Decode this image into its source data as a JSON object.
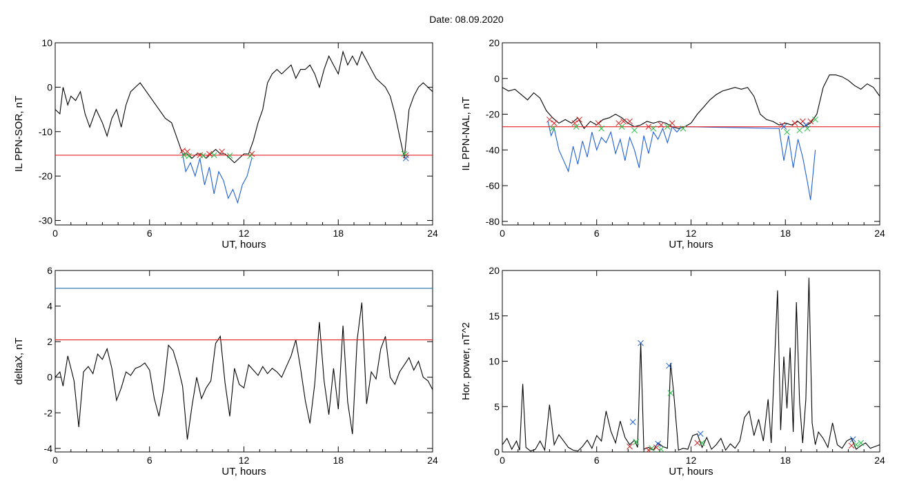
{
  "page": {
    "title": "Date:  08.09.2020"
  },
  "chart_data": [
    {
      "type": "line",
      "id": "p1",
      "xlabel": "UT, hours",
      "ylabel": "IL PPN-SOR, nT",
      "xlim": [
        0,
        24
      ],
      "ylim": [
        -31,
        10
      ],
      "xticks": [
        0,
        6,
        12,
        18,
        24
      ],
      "yticks": [
        10,
        0,
        -10,
        -20,
        -30
      ],
      "series": [
        {
          "color": "#000000",
          "x": [
            0,
            0.3,
            0.5,
            0.8,
            1.0,
            1.3,
            1.6,
            1.9,
            2.2,
            2.6,
            3.0,
            3.3,
            3.6,
            3.9,
            4.2,
            4.5,
            4.8,
            5.1,
            5.4,
            5.8,
            6.2,
            6.6,
            7.0,
            7.4,
            7.8,
            8.1,
            8.4,
            8.7,
            9.0,
            9.3,
            9.6,
            9.9,
            10.2,
            10.5,
            10.8,
            11.1,
            11.4,
            11.7,
            12.0,
            12.3,
            12.6,
            12.9,
            13.2,
            13.5,
            13.8,
            14.1,
            14.4,
            14.7,
            15.0,
            15.3,
            15.6,
            15.9,
            16.2,
            16.5,
            16.8,
            17.1,
            17.4,
            17.7,
            18.0,
            18.3,
            18.6,
            18.9,
            19.2,
            19.5,
            19.8,
            20.1,
            20.4,
            20.7,
            21.0,
            21.3,
            21.6,
            21.9,
            22.2,
            22.5,
            22.8,
            23.1,
            23.4,
            23.7,
            24.0
          ],
          "y": [
            -5,
            -6,
            0,
            -4,
            -2,
            -3,
            -1,
            -6,
            -9,
            -5,
            -8,
            -11,
            -7,
            -5,
            -9,
            -4,
            -1,
            0,
            1,
            -1,
            -3,
            -5,
            -7,
            -8,
            -12,
            -15,
            -15,
            -16,
            -15,
            -15,
            -16,
            -15,
            -14,
            -15,
            -15,
            -16,
            -17,
            -16,
            -15,
            -15,
            -12,
            -8,
            -5,
            1,
            3,
            4,
            3,
            4,
            5,
            2,
            4,
            4,
            5,
            3,
            0,
            4,
            7,
            5,
            3,
            8,
            5,
            7,
            5,
            8,
            6,
            4,
            2,
            1,
            0,
            -2,
            -6,
            -11,
            -16,
            -5,
            -2,
            0,
            1,
            0,
            -1
          ]
        },
        {
          "color": "#1e5fd6",
          "x": [
            8.1,
            8.3,
            8.6,
            8.9,
            9.2,
            9.5,
            9.8,
            10.1,
            10.4,
            10.7,
            11.0,
            11.3,
            11.6,
            11.9,
            12.2,
            12.5
          ],
          "y": [
            -15,
            -19,
            -17,
            -20,
            -16,
            -22,
            -18,
            -24,
            -19,
            -21,
            -25,
            -23,
            -26,
            -22,
            -20,
            -16
          ]
        }
      ],
      "thresholds": [
        {
          "y": -15.3,
          "color": "#e02020"
        }
      ],
      "markers": [
        {
          "symbol": "x",
          "color": "#e02020",
          "x": [
            8.1,
            8.4,
            9.2,
            9.8,
            10.6,
            12.5,
            22.3
          ],
          "y": [
            -14.3,
            -14.5,
            -15.3,
            -15.0,
            -14.5,
            -15.0,
            -15.3
          ]
        },
        {
          "symbol": "x",
          "color": "#20c040",
          "x": [
            8.2,
            8.5,
            9.4,
            10.1,
            11.1,
            12.4,
            22.2
          ],
          "y": [
            -15.3,
            -15.5,
            -15.4,
            -15.3,
            -15.4,
            -15.5,
            -15.0
          ]
        },
        {
          "symbol": "x",
          "color": "#1e5fd6",
          "x": [
            22.3
          ],
          "y": [
            -16.0
          ]
        }
      ]
    },
    {
      "type": "line",
      "id": "p2",
      "xlabel": "UT, hours",
      "ylabel": "IL PPN-NAL, nT",
      "xlim": [
        0,
        24
      ],
      "ylim": [
        -82,
        20
      ],
      "xticks": [
        0,
        6,
        12,
        18,
        24
      ],
      "yticks": [
        20,
        0,
        -20,
        -40,
        -60,
        -80
      ],
      "series": [
        {
          "color": "#000000",
          "x": [
            0,
            0.4,
            0.8,
            1.2,
            1.6,
            2.0,
            2.4,
            2.8,
            3.2,
            3.6,
            4.0,
            4.4,
            4.8,
            5.2,
            5.6,
            6.0,
            6.4,
            6.8,
            7.2,
            7.6,
            8.0,
            8.4,
            8.8,
            9.2,
            9.6,
            10.0,
            10.4,
            10.8,
            11.2,
            11.6,
            12.0,
            12.4,
            12.8,
            13.2,
            13.6,
            14.0,
            14.4,
            14.8,
            15.2,
            15.6,
            16.0,
            16.4,
            16.8,
            17.2,
            17.6,
            18.0,
            18.4,
            18.8,
            19.2,
            19.6,
            20.0,
            20.4,
            20.8,
            21.2,
            21.6,
            22.0,
            22.4,
            22.8,
            23.2,
            23.6,
            24.0
          ],
          "y": [
            -5,
            -7,
            -6,
            -9,
            -12,
            -8,
            -11,
            -18,
            -22,
            -25,
            -23,
            -25,
            -22,
            -28,
            -24,
            -26,
            -23,
            -22,
            -20,
            -22,
            -25,
            -27,
            -26,
            -24,
            -25,
            -24,
            -25,
            -27,
            -28,
            -27,
            -25,
            -20,
            -16,
            -12,
            -9,
            -7,
            -6,
            -5,
            -6,
            -5,
            -10,
            -20,
            -23,
            -24,
            -26,
            -25,
            -26,
            -24,
            -27,
            -25,
            -20,
            -5,
            2,
            2,
            1,
            -1,
            -4,
            -6,
            -3,
            -5,
            -10
          ]
        },
        {
          "color": "#1e5fd6",
          "x": [
            2.9,
            3.1,
            3.3,
            3.6,
            3.9,
            4.2,
            4.5,
            4.8,
            5.1,
            5.4,
            5.7,
            6.0,
            6.3,
            6.6,
            6.9,
            7.2,
            7.5,
            7.8,
            8.1,
            8.4,
            8.7,
            9.0,
            9.3,
            9.6,
            9.9,
            10.2,
            10.5,
            10.8,
            11.1,
            11.4,
            17.6,
            17.9,
            18.2,
            18.5,
            18.8,
            19.1,
            19.4,
            19.6,
            19.9
          ],
          "y": [
            -24,
            -32,
            -28,
            -40,
            -46,
            -52,
            -38,
            -48,
            -35,
            -44,
            -30,
            -40,
            -33,
            -36,
            -30,
            -42,
            -34,
            -46,
            -33,
            -40,
            -50,
            -32,
            -42,
            -30,
            -34,
            -28,
            -36,
            -27,
            -30,
            -27,
            -28,
            -46,
            -32,
            -50,
            -34,
            -44,
            -58,
            -68,
            -40
          ]
        }
      ],
      "thresholds": [
        {
          "y": -27,
          "color": "#e02020"
        }
      ],
      "markers": [
        {
          "symbol": "x",
          "color": "#e02020",
          "x": [
            3.0,
            3.3,
            4.6,
            4.9,
            6.1,
            7.4,
            7.7,
            8.1,
            9.3,
            10.1,
            10.8,
            17.8,
            18.6,
            19.1,
            19.6
          ],
          "y": [
            -23,
            -25,
            -25,
            -23,
            -25,
            -25,
            -24,
            -24,
            -27,
            -26,
            -25,
            -26,
            -25,
            -24,
            -24
          ]
        },
        {
          "symbol": "x",
          "color": "#20c040",
          "x": [
            3.2,
            4.7,
            6.3,
            7.6,
            8.4,
            9.6,
            10.5,
            11.5,
            18.1,
            18.9,
            19.4,
            19.9
          ],
          "y": [
            -28,
            -27,
            -28,
            -27,
            -29,
            -28,
            -27,
            -28,
            -30,
            -29,
            -28,
            -23
          ]
        },
        {
          "symbol": "x",
          "color": "#1e5fd6",
          "x": [
            17.9,
            19.3
          ],
          "y": [
            -27,
            -26
          ]
        }
      ]
    },
    {
      "type": "line",
      "id": "p3",
      "xlabel": "UT, hours",
      "ylabel": "deltaX, nT",
      "xlim": [
        0,
        24
      ],
      "ylim": [
        -4.2,
        6
      ],
      "xticks": [
        0,
        6,
        12,
        18,
        24
      ],
      "yticks": [
        6,
        4,
        2,
        0,
        -2,
        -4
      ],
      "series": [
        {
          "color": "#000000",
          "x": [
            0,
            0.3,
            0.5,
            0.8,
            1.0,
            1.2,
            1.5,
            1.8,
            2.1,
            2.4,
            2.7,
            3.0,
            3.3,
            3.6,
            3.9,
            4.2,
            4.5,
            4.8,
            5.1,
            5.4,
            5.7,
            6.0,
            6.3,
            6.6,
            6.9,
            7.2,
            7.5,
            7.8,
            8.1,
            8.4,
            8.7,
            9.0,
            9.3,
            9.6,
            9.9,
            10.2,
            10.5,
            10.8,
            11.1,
            11.4,
            11.7,
            12.0,
            12.3,
            12.6,
            12.9,
            13.2,
            13.5,
            13.8,
            14.1,
            14.4,
            14.7,
            15.0,
            15.3,
            15.6,
            15.9,
            16.2,
            16.5,
            16.8,
            17.1,
            17.4,
            17.7,
            18.0,
            18.3,
            18.6,
            18.9,
            19.2,
            19.5,
            19.8,
            20.1,
            20.4,
            20.7,
            21.0,
            21.3,
            21.6,
            21.9,
            22.2,
            22.5,
            22.8,
            23.1,
            23.4,
            23.7,
            24.0
          ],
          "y": [
            0,
            0.3,
            -0.5,
            1.2,
            0.5,
            -0.2,
            -2.8,
            0.3,
            0.6,
            0.2,
            1.3,
            1.0,
            1.6,
            0.5,
            -1.3,
            -0.6,
            0.3,
            0.1,
            0.5,
            0.6,
            0.8,
            0.4,
            -1.2,
            -2.2,
            -0.6,
            1.8,
            1.5,
            0.6,
            -0.5,
            -3.5,
            -1.6,
            0.0,
            -1.2,
            -0.6,
            -0.2,
            1.9,
            2.3,
            -0.3,
            -2.2,
            0.5,
            -0.4,
            -0.6,
            0.7,
            0.4,
            0.1,
            0.6,
            0.2,
            0.5,
            0.3,
            0.0,
            0.6,
            1.2,
            2.1,
            0.5,
            -1.3,
            -2.6,
            -0.4,
            3.1,
            -0.2,
            -2.1,
            0.5,
            -1.8,
            2.9,
            -1.4,
            -3.2,
            2.1,
            4.2,
            -1.5,
            0.3,
            -0.1,
            1.6,
            2.3,
            0.0,
            -0.4,
            0.3,
            0.7,
            1.1,
            0.4,
            0.9,
            0.0,
            -0.2,
            -0.7
          ]
        }
      ],
      "thresholds": [
        {
          "y": 5.0,
          "color": "#1e6fa8"
        },
        {
          "y": 2.1,
          "color": "#e02020"
        }
      ],
      "markers": []
    },
    {
      "type": "line",
      "id": "p4",
      "xlabel": "UT, hours",
      "ylabel": "Hor. power, nT^2",
      "xlim": [
        0,
        24
      ],
      "ylim": [
        0,
        20
      ],
      "xticks": [
        0,
        6,
        12,
        18,
        24
      ],
      "yticks": [
        20,
        15,
        10,
        5,
        0
      ],
      "series": [
        {
          "color": "#000000",
          "x": [
            0,
            0.3,
            0.6,
            0.9,
            1.1,
            1.3,
            1.5,
            1.8,
            2.1,
            2.4,
            2.7,
            3.0,
            3.3,
            3.6,
            3.9,
            4.2,
            4.5,
            4.8,
            5.1,
            5.4,
            5.7,
            6.0,
            6.3,
            6.6,
            6.9,
            7.2,
            7.5,
            7.8,
            8.1,
            8.4,
            8.6,
            8.8,
            9.0,
            9.3,
            9.6,
            9.9,
            10.2,
            10.5,
            10.7,
            10.9,
            11.2,
            11.5,
            11.8,
            12.1,
            12.4,
            12.7,
            13.0,
            13.3,
            13.6,
            13.9,
            14.2,
            14.5,
            14.8,
            15.1,
            15.4,
            15.7,
            16.0,
            16.3,
            16.6,
            16.9,
            17.1,
            17.3,
            17.5,
            17.7,
            17.9,
            18.1,
            18.3,
            18.5,
            18.7,
            18.9,
            19.1,
            19.3,
            19.5,
            19.7,
            19.9,
            20.1,
            20.4,
            20.7,
            21.0,
            21.3,
            21.6,
            21.9,
            22.2,
            22.5,
            22.8,
            23.1,
            23.4,
            23.7,
            24.0
          ],
          "y": [
            0.8,
            1.5,
            0.3,
            1.2,
            0.2,
            7.5,
            0.5,
            0.1,
            0.3,
            1.2,
            0.2,
            5.2,
            0.8,
            1.9,
            1.2,
            0.5,
            0.2,
            0.1,
            0.6,
            1.3,
            0.4,
            1.8,
            1.2,
            4.5,
            2.3,
            1.0,
            3.4,
            1.6,
            0.8,
            1.3,
            0.5,
            12.0,
            0.3,
            0.5,
            0.2,
            1.0,
            0.6,
            0.4,
            9.8,
            6.5,
            0.2,
            0.4,
            0.3,
            1.8,
            2.0,
            0.5,
            1.6,
            0.3,
            0.8,
            1.5,
            0.2,
            0.9,
            0.4,
            1.2,
            3.8,
            4.5,
            1.8,
            3.6,
            1.2,
            5.8,
            1.0,
            9.5,
            17.8,
            2.4,
            10.5,
            4.8,
            11.5,
            2.2,
            16.5,
            5.5,
            1.0,
            5.8,
            19.2,
            3.2,
            0.8,
            2.2,
            1.5,
            0.5,
            3.2,
            0.8,
            0.4,
            1.2,
            1.5,
            0.3,
            0.7,
            1.0,
            0.4,
            0.6,
            0.8
          ]
        }
      ],
      "thresholds": [],
      "markers": [
        {
          "symbol": "x",
          "color": "#1e5fd6",
          "x": [
            8.3,
            8.8,
            9.9,
            10.6,
            12.6,
            22.3
          ],
          "y": [
            3.3,
            12.0,
            0.9,
            9.5,
            2.0,
            1.4
          ]
        },
        {
          "symbol": "x",
          "color": "#20c040",
          "x": [
            8.5,
            9.5,
            10.1,
            10.7,
            12.7,
            22.5,
            22.8
          ],
          "y": [
            1.1,
            0.4,
            0.3,
            6.5,
            1.0,
            0.8,
            1.0
          ]
        },
        {
          "symbol": "x",
          "color": "#e02020",
          "x": [
            8.1,
            9.3,
            9.8,
            12.4,
            22.2
          ],
          "y": [
            0.6,
            0.2,
            0.5,
            1.0,
            0.7
          ]
        }
      ]
    }
  ]
}
